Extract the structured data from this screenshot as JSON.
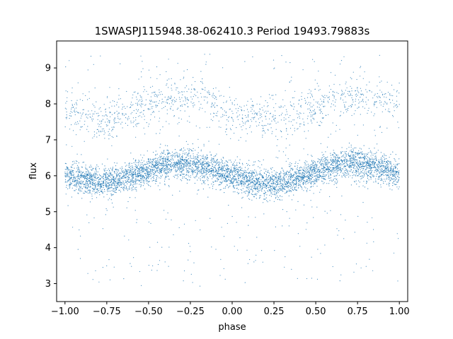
{
  "chart_data": {
    "type": "scatter",
    "title": "1SWASPJ115948.38-062410.3 Period 19493.79883s",
    "xlabel": "phase",
    "ylabel": "flux",
    "xlim": [
      -1.05,
      1.05
    ],
    "ylim": [
      2.5,
      9.75
    ],
    "x_ticks": [
      -1.0,
      -0.75,
      -0.5,
      -0.25,
      0.0,
      0.25,
      0.5,
      0.75,
      1.0
    ],
    "x_tick_labels": [
      "−1.00",
      "−0.75",
      "−0.50",
      "−0.25",
      "0.00",
      "0.25",
      "0.50",
      "0.75",
      "1.00"
    ],
    "y_ticks": [
      3,
      4,
      5,
      6,
      7,
      8,
      9
    ],
    "y_tick_labels": [
      "3",
      "4",
      "5",
      "6",
      "7",
      "8",
      "9"
    ],
    "grid": false,
    "marker_color": "#1f77b4",
    "series": [
      {
        "x": [
          -1.0,
          -0.9,
          -0.8,
          -0.7,
          -0.6,
          -0.5,
          -0.4,
          -0.3,
          -0.25,
          -0.2,
          -0.1,
          0.0,
          0.1,
          0.2,
          0.25,
          0.3,
          0.4,
          0.5,
          0.6,
          0.7,
          0.75,
          0.8,
          0.9,
          1.0
        ],
        "values": [
          6.0,
          5.9,
          5.8,
          5.85,
          6.0,
          6.15,
          6.3,
          6.35,
          6.35,
          6.3,
          6.15,
          6.0,
          5.85,
          5.8,
          5.75,
          5.8,
          5.95,
          6.1,
          6.25,
          6.35,
          6.35,
          6.3,
          6.2,
          6.05
        ]
      },
      {
        "x": [
          -1.0,
          -0.8,
          -0.6,
          -0.4,
          -0.25,
          -0.1,
          0.0,
          0.2,
          0.3,
          0.5,
          0.7,
          0.8,
          1.0
        ],
        "values": [
          7.8,
          7.55,
          7.8,
          8.1,
          8.25,
          8.0,
          7.75,
          7.6,
          7.55,
          7.95,
          8.1,
          8.15,
          7.95
        ]
      }
    ]
  }
}
